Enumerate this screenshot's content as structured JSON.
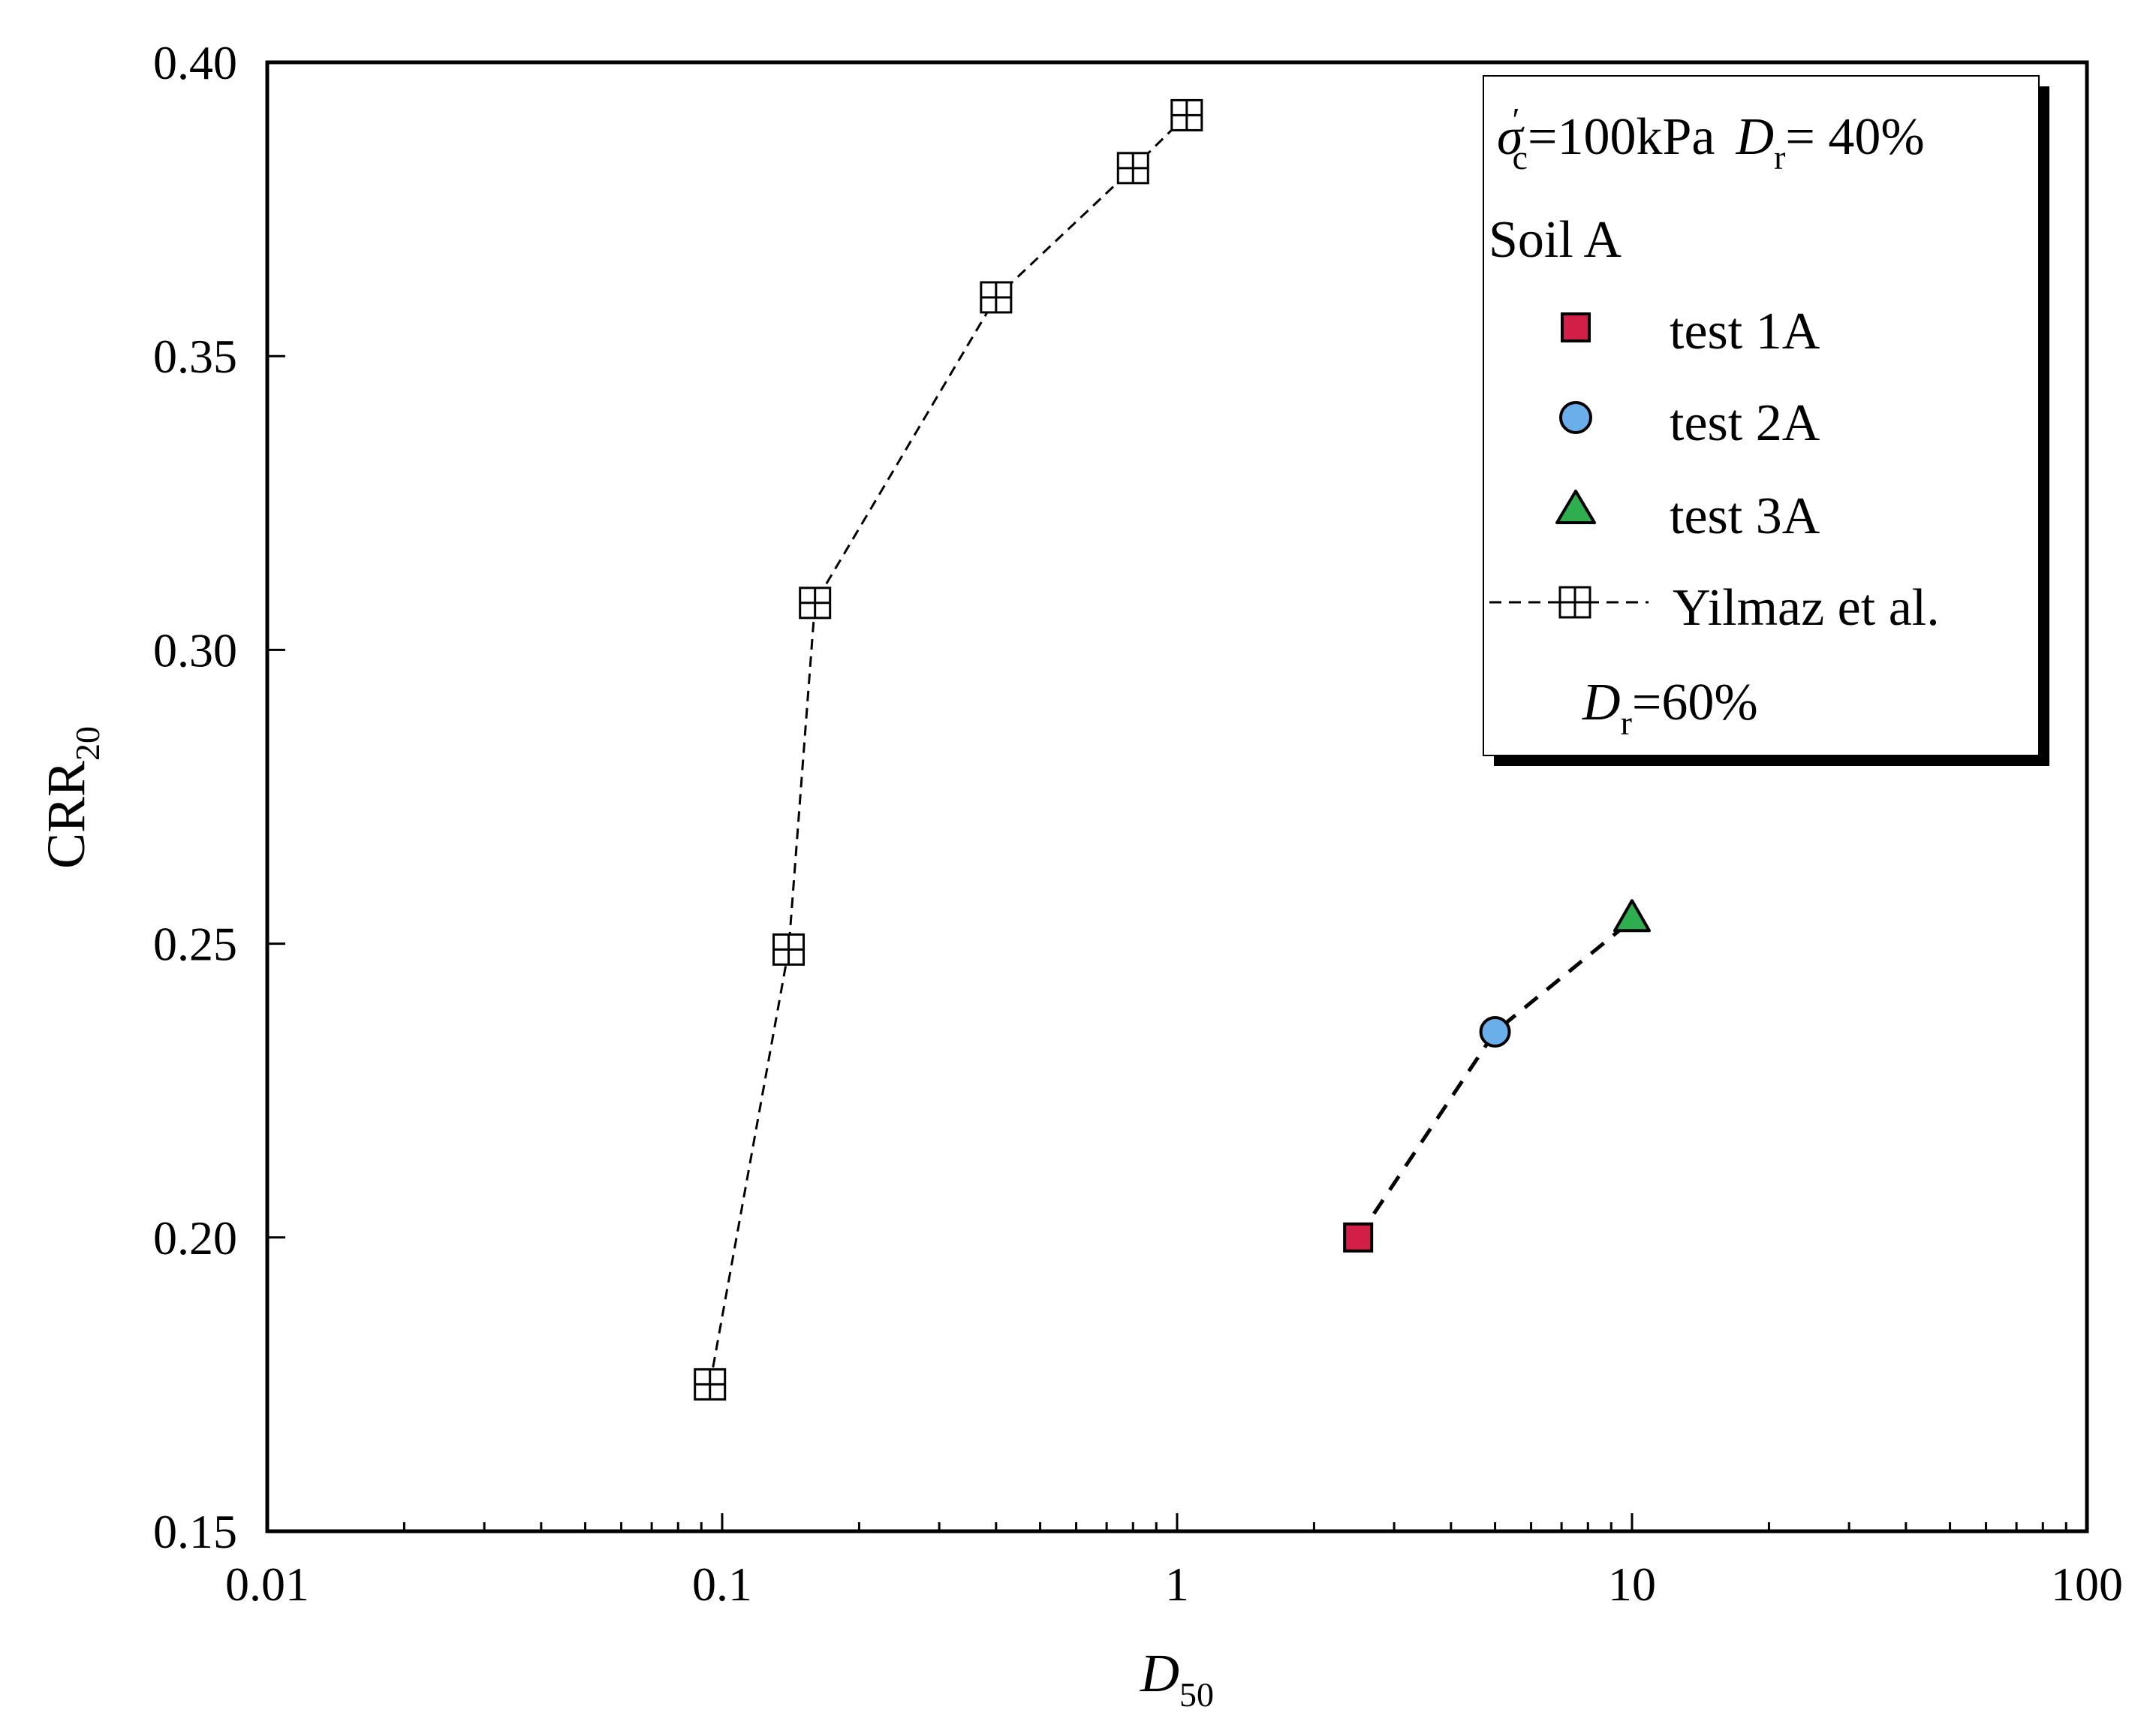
{
  "chart_data": {
    "type": "scatter",
    "xscale": "log",
    "xlim": [
      0.01,
      100
    ],
    "ylim": [
      0.15,
      0.4
    ],
    "x_ticks": [
      {
        "value": 0.01,
        "label": "0.01"
      },
      {
        "value": 0.1,
        "label": "0.1"
      },
      {
        "value": 1,
        "label": "1"
      },
      {
        "value": 10,
        "label": "10"
      },
      {
        "value": 100,
        "label": "100"
      }
    ],
    "y_ticks": [
      {
        "value": 0.15,
        "label": "0.15"
      },
      {
        "value": 0.2,
        "label": "0.20"
      },
      {
        "value": 0.25,
        "label": "0.25"
      },
      {
        "value": 0.3,
        "label": "0.30"
      },
      {
        "value": 0.35,
        "label": "0.35"
      },
      {
        "value": 0.4,
        "label": "0.40"
      }
    ],
    "xlabel": {
      "main": "D",
      "sub": "50"
    },
    "ylabel": {
      "main": "CRR",
      "sub": "20"
    },
    "test_connector": {
      "style": "dashed",
      "points": [
        [
          2.5,
          0.2
        ],
        [
          5.0,
          0.235
        ],
        [
          10.0,
          0.254
        ]
      ]
    },
    "series": [
      {
        "name": "test 1A",
        "marker": "square",
        "color": "#d21f48",
        "x": [
          2.5
        ],
        "y": [
          0.2
        ]
      },
      {
        "name": "test 2A",
        "marker": "circle",
        "color": "#6aafea",
        "x": [
          5.0
        ],
        "y": [
          0.235
        ]
      },
      {
        "name": "test 3A",
        "marker": "triangle",
        "color": "#2eae4e",
        "x": [
          10.0
        ],
        "y": [
          0.254
        ]
      },
      {
        "name": "Yilmaz et al.",
        "marker": "boxed-plus",
        "color": "#000000",
        "line": "dashed",
        "x": [
          0.094,
          0.14,
          0.16,
          0.4,
          0.8,
          1.05
        ],
        "y": [
          0.175,
          0.249,
          0.308,
          0.36,
          0.382,
          0.391
        ]
      }
    ],
    "legend": {
      "placement": "top-right",
      "header": {
        "sigma": "σ",
        "sigma_sub": "c",
        "sigma_sup": "′",
        "sigma_value": "=100kPa",
        "dr_symbol": "D",
        "dr_sub": "r",
        "dr_value": "= 40%"
      },
      "group_title": "Soil A",
      "entries": [
        "test 1A",
        "test 2A",
        "test 3A",
        "Yilmaz et al."
      ],
      "yilmaz_color": "#1a1aee",
      "footnote": {
        "dr_symbol": "D",
        "dr_sub": "r",
        "dr_value": "=60%"
      }
    }
  }
}
